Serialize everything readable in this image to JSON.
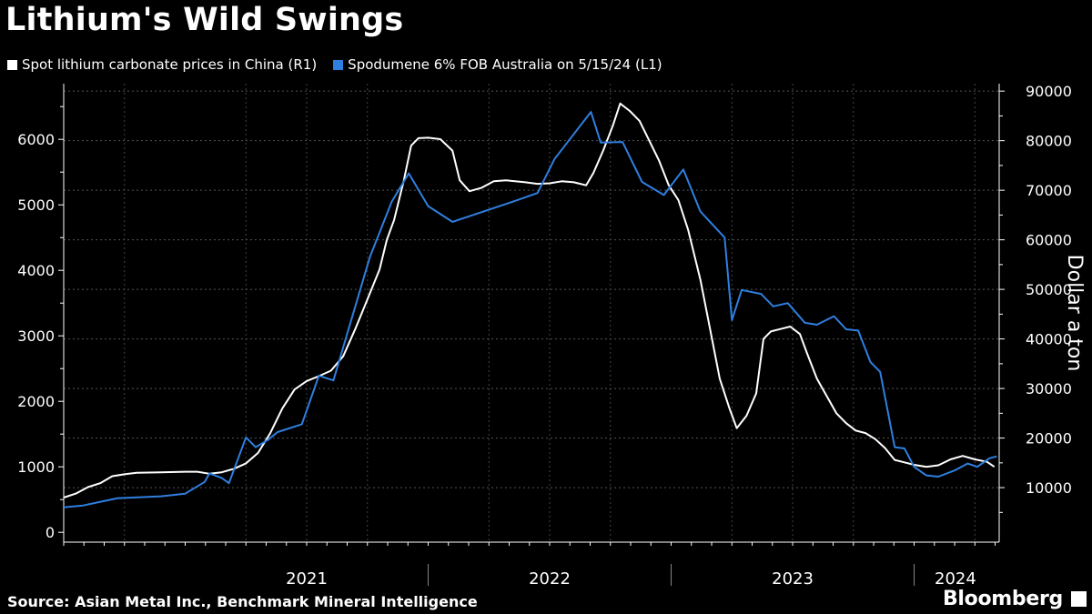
{
  "title": "Lithium's Wild Swings",
  "legend": [
    {
      "label": "Spot lithium carbonate prices in China (R1)",
      "color": "#ffffff"
    },
    {
      "label": "Spodumene 6% FOB Australia on 5/15/24 (L1)",
      "color": "#2f7fe0"
    }
  ],
  "source": "Source: Asian Metal Inc., Benchmark Mineral Intelligence",
  "brand": "Bloomberg",
  "chart_data": {
    "type": "line",
    "title": "Lithium's Wild Swings",
    "ylabel_right": "Dollar a ton",
    "ylim_left": [
      -150,
      6850
    ],
    "ylim_right": [
      -1000,
      91500
    ],
    "yticks_left": [
      0,
      1000,
      2000,
      3000,
      4000,
      5000,
      6000
    ],
    "yticks_right": [
      10000,
      20000,
      30000,
      40000,
      50000,
      60000,
      70000,
      80000,
      90000
    ],
    "xlim": [
      2020.5,
      2024.35
    ],
    "x_tick_labels": [
      {
        "label": "2021",
        "x": 2021.0
      },
      {
        "label": "2022",
        "x": 2022.0
      },
      {
        "label": "2023",
        "x": 2023.0
      },
      {
        "label": "2024",
        "x": 2024.0
      }
    ],
    "series": [
      {
        "name": "Spot lithium carbonate prices in China (R1)",
        "axis": "right",
        "color": "#ffffff",
        "points": [
          [
            2020.5,
            8000
          ],
          [
            2020.55,
            8800
          ],
          [
            2020.6,
            10100
          ],
          [
            2020.65,
            10900
          ],
          [
            2020.7,
            12300
          ],
          [
            2020.75,
            12700
          ],
          [
            2020.8,
            13000
          ],
          [
            2020.9,
            13100
          ],
          [
            2021.0,
            13200
          ],
          [
            2021.05,
            13200
          ],
          [
            2021.1,
            12800
          ],
          [
            2021.15,
            13100
          ],
          [
            2021.2,
            13800
          ],
          [
            2021.25,
            14900
          ],
          [
            2021.3,
            17000
          ],
          [
            2021.35,
            21000
          ],
          [
            2021.4,
            26000
          ],
          [
            2021.45,
            29800
          ],
          [
            2021.5,
            31500
          ],
          [
            2021.55,
            32500
          ],
          [
            2021.6,
            33600
          ],
          [
            2021.65,
            36500
          ],
          [
            2021.7,
            42000
          ],
          [
            2021.75,
            48000
          ],
          [
            2021.8,
            54000
          ],
          [
            2021.83,
            60000
          ],
          [
            2021.86,
            64000
          ],
          [
            2021.9,
            72000
          ],
          [
            2021.93,
            79000
          ],
          [
            2021.96,
            80500
          ],
          [
            2022.0,
            80600
          ],
          [
            2022.05,
            80300
          ],
          [
            2022.1,
            78000
          ],
          [
            2022.13,
            72000
          ],
          [
            2022.17,
            69800
          ],
          [
            2022.22,
            70500
          ],
          [
            2022.27,
            71800
          ],
          [
            2022.32,
            72000
          ],
          [
            2022.4,
            71600
          ],
          [
            2022.45,
            71300
          ],
          [
            2022.5,
            71400
          ],
          [
            2022.55,
            71800
          ],
          [
            2022.6,
            71600
          ],
          [
            2022.65,
            71000
          ],
          [
            2022.68,
            73500
          ],
          [
            2022.72,
            78000
          ],
          [
            2022.76,
            83000
          ],
          [
            2022.79,
            87500
          ],
          [
            2022.83,
            86000
          ],
          [
            2022.87,
            84000
          ],
          [
            2022.91,
            80000
          ],
          [
            2022.95,
            76000
          ],
          [
            2022.99,
            71000
          ],
          [
            2023.03,
            68000
          ],
          [
            2023.07,
            62000
          ],
          [
            2023.12,
            52000
          ],
          [
            2023.16,
            42000
          ],
          [
            2023.2,
            32000
          ],
          [
            2023.24,
            26000
          ],
          [
            2023.27,
            22000
          ],
          [
            2023.31,
            24500
          ],
          [
            2023.35,
            29000
          ],
          [
            2023.38,
            40000
          ],
          [
            2023.41,
            41500
          ],
          [
            2023.45,
            42000
          ],
          [
            2023.49,
            42500
          ],
          [
            2023.53,
            41000
          ],
          [
            2023.56,
            37000
          ],
          [
            2023.6,
            32000
          ],
          [
            2023.64,
            28500
          ],
          [
            2023.68,
            25000
          ],
          [
            2023.72,
            23000
          ],
          [
            2023.76,
            21500
          ],
          [
            2023.8,
            21000
          ],
          [
            2023.84,
            19800
          ],
          [
            2023.88,
            18000
          ],
          [
            2023.92,
            15600
          ],
          [
            2023.96,
            15100
          ],
          [
            2024.0,
            14600
          ],
          [
            2024.05,
            14200
          ],
          [
            2024.1,
            14500
          ],
          [
            2024.15,
            15700
          ],
          [
            2024.2,
            16400
          ],
          [
            2024.25,
            15700
          ],
          [
            2024.3,
            15200
          ],
          [
            2024.33,
            14200
          ]
        ]
      },
      {
        "name": "Spodumene 6% FOB Australia on 5/15/24 (L1)",
        "axis": "left",
        "color": "#2f7fe0",
        "points": [
          [
            2020.5,
            380
          ],
          [
            2020.58,
            410
          ],
          [
            2020.72,
            520
          ],
          [
            2020.9,
            550
          ],
          [
            2021.0,
            590
          ],
          [
            2021.08,
            770
          ],
          [
            2021.1,
            900
          ],
          [
            2021.15,
            830
          ],
          [
            2021.18,
            750
          ],
          [
            2021.25,
            1450
          ],
          [
            2021.29,
            1300
          ],
          [
            2021.34,
            1410
          ],
          [
            2021.38,
            1530
          ],
          [
            2021.48,
            1650
          ],
          [
            2021.55,
            2390
          ],
          [
            2021.61,
            2320
          ],
          [
            2021.76,
            4200
          ],
          [
            2021.85,
            5050
          ],
          [
            2021.92,
            5480
          ],
          [
            2022.0,
            4980
          ],
          [
            2022.1,
            4740
          ],
          [
            2022.35,
            5050
          ],
          [
            2022.45,
            5180
          ],
          [
            2022.52,
            5700
          ],
          [
            2022.67,
            6420
          ],
          [
            2022.71,
            5950
          ],
          [
            2022.8,
            5960
          ],
          [
            2022.88,
            5350
          ],
          [
            2022.97,
            5150
          ],
          [
            2023.05,
            5540
          ],
          [
            2023.12,
            4900
          ],
          [
            2023.22,
            4500
          ],
          [
            2023.25,
            3240
          ],
          [
            2023.29,
            3700
          ],
          [
            2023.37,
            3640
          ],
          [
            2023.42,
            3450
          ],
          [
            2023.48,
            3500
          ],
          [
            2023.55,
            3200
          ],
          [
            2023.6,
            3170
          ],
          [
            2023.67,
            3300
          ],
          [
            2023.72,
            3100
          ],
          [
            2023.77,
            3080
          ],
          [
            2023.82,
            2600
          ],
          [
            2023.86,
            2450
          ],
          [
            2023.92,
            1300
          ],
          [
            2023.96,
            1280
          ],
          [
            2024.0,
            1000
          ],
          [
            2024.05,
            870
          ],
          [
            2024.1,
            850
          ],
          [
            2024.17,
            950
          ],
          [
            2024.22,
            1050
          ],
          [
            2024.26,
            1000
          ],
          [
            2024.31,
            1130
          ],
          [
            2024.34,
            1160
          ]
        ]
      }
    ]
  }
}
